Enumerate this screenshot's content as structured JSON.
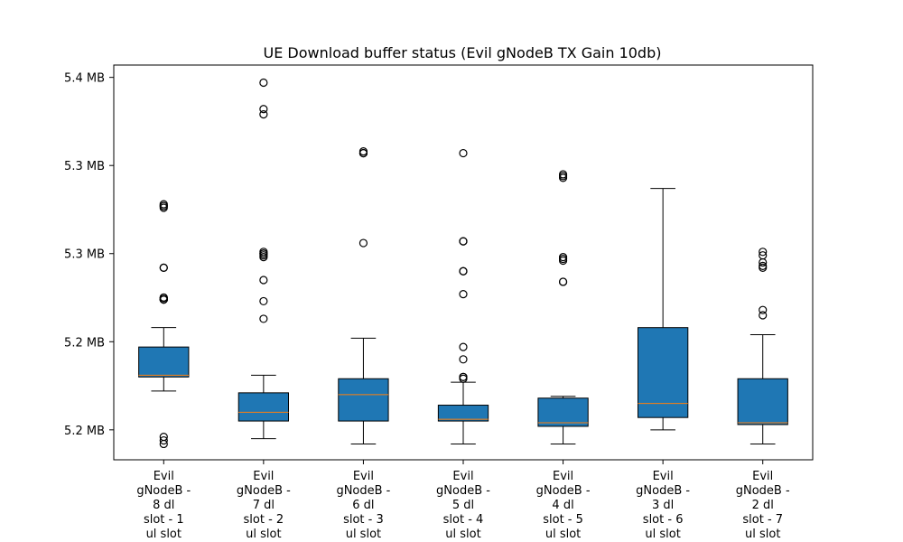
{
  "chart_data": {
    "type": "box",
    "title": "UE Download buffer status (Evil gNodeB TX Gain 10db)",
    "xlabel": "",
    "ylabel": "",
    "ylim": [
      5.176,
      5.4
    ],
    "y_ticks": [
      {
        "value": 5.193,
        "label": "5.2 MB"
      },
      {
        "value": 5.243,
        "label": "5.2 MB"
      },
      {
        "value": 5.293,
        "label": "5.3 MB"
      },
      {
        "value": 5.343,
        "label": "5.3 MB"
      },
      {
        "value": 5.393,
        "label": "5.4 MB"
      }
    ],
    "grid": false,
    "box_color": "#1f77b4",
    "median_color": "#ff7f0e",
    "categories": [
      [
        "Evil",
        "gNodeB -",
        "8 dl",
        "slot - 1",
        "ul slot"
      ],
      [
        "Evil",
        "gNodeB -",
        "7 dl",
        "slot - 2",
        "ul slot"
      ],
      [
        "Evil",
        "gNodeB -",
        "6 dl",
        "slot - 3",
        "ul slot"
      ],
      [
        "Evil",
        "gNodeB -",
        "5 dl",
        "slot - 4",
        "ul slot"
      ],
      [
        "Evil",
        "gNodeB -",
        "4 dl",
        "slot - 5",
        "ul slot"
      ],
      [
        "Evil",
        "gNodeB -",
        "3 dl",
        "slot - 6",
        "ul slot"
      ],
      [
        "Evil",
        "gNodeB -",
        "2 dl",
        "slot - 7",
        "ul slot"
      ]
    ],
    "boxes": [
      {
        "whisker_low": 5.215,
        "q1": 5.223,
        "median": 5.224,
        "q3": 5.24,
        "whisker_high": 5.251,
        "fliers": [
          5.185,
          5.187,
          5.189,
          5.267,
          5.267,
          5.267,
          5.267,
          5.267,
          5.268,
          5.268,
          5.268,
          5.285,
          5.285,
          5.32,
          5.319,
          5.32,
          5.321
        ]
      },
      {
        "whisker_low": 5.188,
        "q1": 5.198,
        "median": 5.203,
        "q3": 5.214,
        "whisker_high": 5.224,
        "fliers": [
          5.256,
          5.266,
          5.278,
          5.291,
          5.292,
          5.293,
          5.293,
          5.294,
          5.372,
          5.375,
          5.39
        ]
      },
      {
        "whisker_low": 5.185,
        "q1": 5.198,
        "median": 5.213,
        "q3": 5.222,
        "whisker_high": 5.245,
        "fliers": [
          5.299,
          5.35,
          5.35,
          5.35,
          5.351
        ]
      },
      {
        "whisker_low": 5.185,
        "q1": 5.198,
        "median": 5.199,
        "q3": 5.207,
        "whisker_high": 5.22,
        "fliers": [
          5.222,
          5.223,
          5.223,
          5.233,
          5.24,
          5.27,
          5.283,
          5.283,
          5.3,
          5.3,
          5.35
        ]
      },
      {
        "whisker_low": 5.185,
        "q1": 5.195,
        "median": 5.197,
        "q3": 5.211,
        "whisker_high": 5.212,
        "fliers": [
          5.277,
          5.277,
          5.289,
          5.29,
          5.291,
          5.336,
          5.337,
          5.338
        ]
      },
      {
        "whisker_low": 5.193,
        "q1": 5.2,
        "median": 5.208,
        "q3": 5.251,
        "whisker_high": 5.33,
        "fliers": []
      },
      {
        "whisker_low": 5.185,
        "q1": 5.196,
        "median": 5.197,
        "q3": 5.222,
        "whisker_high": 5.247,
        "fliers": [
          5.258,
          5.261,
          5.285,
          5.286,
          5.288,
          5.292,
          5.294
        ]
      }
    ]
  }
}
